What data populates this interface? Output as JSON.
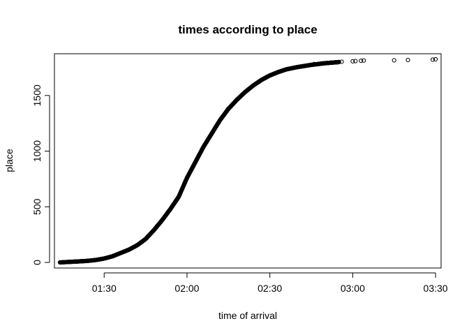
{
  "chart_data": {
    "type": "scatter",
    "title": "times according to place",
    "xlabel": "time of arrival",
    "ylabel": "place",
    "x_unit": "time (h:mm)",
    "xlim": [
      "01:12",
      "03:32"
    ],
    "ylim": [
      -50,
      1875
    ],
    "x_ticks": [
      "01:30",
      "02:00",
      "02:30",
      "03:00",
      "03:30"
    ],
    "y_ticks": [
      0,
      500,
      1000,
      1500
    ],
    "grid": false,
    "legend": "none",
    "marker": "open-circle",
    "marker_color": "#000000",
    "curve_points": [
      {
        "x": "01:14",
        "y": 0
      },
      {
        "x": "01:16",
        "y": 3
      },
      {
        "x": "01:20",
        "y": 8
      },
      {
        "x": "01:24",
        "y": 14
      },
      {
        "x": "01:27",
        "y": 22
      },
      {
        "x": "01:30",
        "y": 35
      },
      {
        "x": "01:33",
        "y": 55
      },
      {
        "x": "01:36",
        "y": 85
      },
      {
        "x": "01:39",
        "y": 115
      },
      {
        "x": "01:42",
        "y": 155
      },
      {
        "x": "01:45",
        "y": 210
      },
      {
        "x": "01:48",
        "y": 290
      },
      {
        "x": "01:51",
        "y": 380
      },
      {
        "x": "01:54",
        "y": 480
      },
      {
        "x": "01:57",
        "y": 590
      },
      {
        "x": "02:00",
        "y": 760
      },
      {
        "x": "02:03",
        "y": 900
      },
      {
        "x": "02:06",
        "y": 1040
      },
      {
        "x": "02:09",
        "y": 1160
      },
      {
        "x": "02:12",
        "y": 1280
      },
      {
        "x": "02:15",
        "y": 1380
      },
      {
        "x": "02:18",
        "y": 1460
      },
      {
        "x": "02:21",
        "y": 1530
      },
      {
        "x": "02:24",
        "y": 1590
      },
      {
        "x": "02:27",
        "y": 1640
      },
      {
        "x": "02:30",
        "y": 1680
      },
      {
        "x": "02:33",
        "y": 1710
      },
      {
        "x": "02:36",
        "y": 1735
      },
      {
        "x": "02:40",
        "y": 1755
      },
      {
        "x": "02:45",
        "y": 1775
      },
      {
        "x": "02:50",
        "y": 1790
      },
      {
        "x": "02:55",
        "y": 1800
      }
    ],
    "outlier_points": [
      {
        "x": "02:46",
        "y": 1782
      },
      {
        "x": "02:49",
        "y": 1788
      },
      {
        "x": "02:52",
        "y": 1795
      },
      {
        "x": "02:55",
        "y": 1801
      },
      {
        "x": "02:56",
        "y": 1803
      },
      {
        "x": "03:00",
        "y": 1807
      },
      {
        "x": "03:01",
        "y": 1809
      },
      {
        "x": "03:03",
        "y": 1812
      },
      {
        "x": "03:04",
        "y": 1814
      },
      {
        "x": "03:15",
        "y": 1816
      },
      {
        "x": "03:20",
        "y": 1819
      },
      {
        "x": "03:29",
        "y": 1822
      },
      {
        "x": "03:30",
        "y": 1825
      }
    ]
  }
}
